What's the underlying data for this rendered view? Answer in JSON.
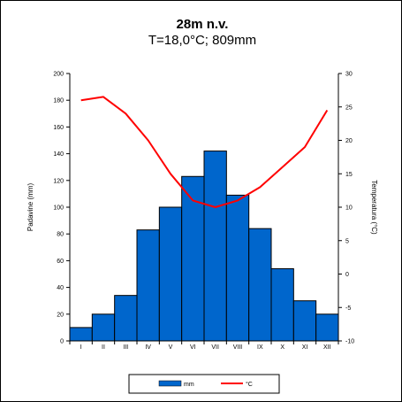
{
  "chart_data": {
    "type": "bar+line",
    "title": "28m n.v.",
    "subtitle": "T=18,0°C; 809mm",
    "categories": [
      "I",
      "II",
      "III",
      "IV",
      "V",
      "VI",
      "VII",
      "VIII",
      "IX",
      "X",
      "XI",
      "XII"
    ],
    "series": [
      {
        "name": "mm",
        "type": "bar",
        "axis": "left",
        "color": "#0066CC",
        "values": [
          10,
          20,
          34,
          83,
          100,
          123,
          142,
          109,
          84,
          54,
          30,
          20
        ]
      },
      {
        "name": "°C",
        "type": "line",
        "axis": "right",
        "color": "#FF0000",
        "values": [
          26,
          26.5,
          24,
          20,
          15,
          11,
          10,
          11,
          13,
          16,
          19,
          24.5
        ]
      }
    ],
    "ylabel": "Padavine (mm)",
    "y2label": "Temperatura (°C)",
    "ylim": [
      0,
      200
    ],
    "yticks": [
      0,
      20,
      40,
      60,
      80,
      100,
      120,
      140,
      160,
      180,
      200
    ],
    "y2lim": [
      -10,
      30
    ],
    "y2ticks": [
      -10,
      -5,
      0,
      5,
      10,
      15,
      20,
      25,
      30
    ],
    "grid": false,
    "legend_position": "bottom"
  }
}
